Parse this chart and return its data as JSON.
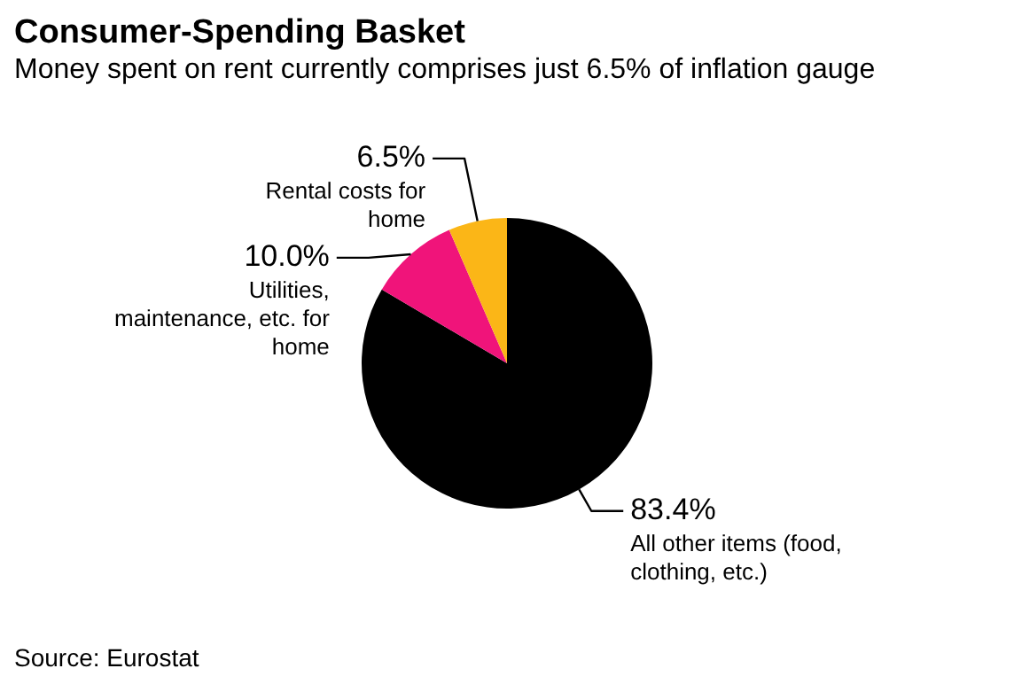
{
  "chart_data": {
    "type": "pie",
    "title": "Consumer-Spending Basket",
    "subtitle": "Money spent on rent currently comprises just 6.5% of inflation gauge",
    "categories": [
      "All other items (food, clothing, etc.)",
      "Utilities, maintenance, etc. for home",
      "Rental costs for home"
    ],
    "values": [
      83.4,
      10.0,
      6.5
    ],
    "value_labels": [
      "83.4%",
      "10.0%",
      "6.5%"
    ],
    "colors": [
      "#000000",
      "#f0147a",
      "#fbb617"
    ],
    "legend": false,
    "annotations": [
      "Source: Eurostat"
    ]
  }
}
